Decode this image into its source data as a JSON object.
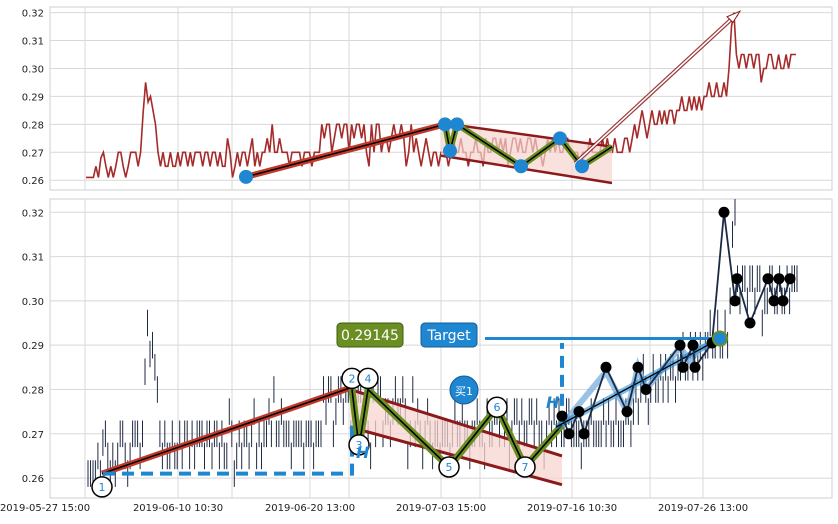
{
  "colors": {
    "price_top": "#a52a2a",
    "price_bars": "#1f2a44",
    "trend_red": "#c0392b",
    "trend_dark": "#8b1a1a",
    "channel_fill": "#f7d6d0",
    "zigzag_olive": "#6b8e23",
    "dots_blue": "#1f86d1",
    "dots_black": "#000000",
    "label_green": "#6b8e23",
    "label_blue": "#1f86d1",
    "dashed_blue": "#1f86d1",
    "grid": "#d8d8d8",
    "panel_bg": "#ffffff"
  },
  "chart_data": [
    {
      "type": "line",
      "panel": "top",
      "ylim": [
        0.2565,
        0.322
      ],
      "yticks": [
        "0.26",
        "0.27",
        "0.28",
        "0.29",
        "0.30",
        "0.31",
        "0.32"
      ],
      "series": [
        {
          "values": [
            0.261,
            0.261,
            0.261,
            0.261,
            0.265,
            0.261,
            0.268,
            0.27,
            0.265,
            0.261,
            0.265,
            0.261,
            0.265,
            0.27,
            0.27,
            0.265,
            0.261,
            0.265,
            0.27,
            0.27,
            0.27,
            0.265,
            0.27,
            0.284,
            0.295,
            0.288,
            0.29,
            0.285,
            0.28,
            0.27,
            0.265,
            0.27,
            0.265,
            0.265,
            0.27,
            0.265,
            0.265,
            0.27,
            0.265,
            0.27,
            0.27,
            0.265,
            0.27,
            0.265,
            0.27,
            0.27,
            0.27,
            0.265,
            0.27,
            0.27,
            0.265,
            0.27,
            0.27,
            0.265,
            0.27,
            0.265,
            0.265,
            0.275,
            0.27,
            0.261,
            0.265,
            0.27,
            0.265,
            0.27,
            0.27,
            0.265,
            0.27,
            0.275,
            0.265,
            0.27,
            0.265,
            0.27,
            0.27,
            0.275,
            0.27,
            0.28,
            0.27,
            0.27,
            0.275,
            0.27,
            0.27,
            0.27,
            0.265,
            0.27,
            0.27,
            0.27,
            0.27,
            0.265,
            0.27,
            0.27,
            0.27,
            0.265,
            0.27,
            0.27,
            0.27,
            0.28,
            0.275,
            0.28,
            0.28,
            0.27,
            0.275,
            0.28,
            0.28,
            0.275,
            0.28,
            0.28,
            0.27,
            0.28,
            0.275,
            0.28,
            0.28,
            0.275,
            0.28,
            0.27,
            0.265,
            0.28,
            0.27,
            0.28,
            0.28,
            0.27,
            0.275,
            0.275,
            0.27,
            0.275,
            0.28,
            0.275,
            0.275,
            0.28,
            0.275,
            0.265,
            0.27,
            0.28,
            0.27,
            0.275,
            0.27,
            0.265,
            0.27,
            0.275,
            0.27,
            0.265,
            0.27,
            0.27,
            0.265,
            0.27,
            0.27,
            0.27,
            0.265,
            0.27,
            0.275,
            0.27,
            0.27,
            0.275,
            0.27,
            0.27,
            0.265,
            0.27,
            0.27,
            0.275,
            0.27,
            0.27,
            0.265,
            0.275,
            0.27,
            0.27,
            0.275,
            0.275,
            0.27,
            0.275,
            0.27,
            0.275,
            0.265,
            0.27,
            0.275,
            0.275,
            0.27,
            0.275,
            0.27,
            0.27,
            0.275,
            0.275,
            0.27,
            0.275,
            0.27,
            0.27,
            0.265,
            0.27,
            0.275,
            0.27,
            0.275,
            0.27,
            0.275,
            0.27,
            0.27,
            0.275,
            0.275,
            0.27,
            0.27,
            0.27,
            0.27,
            0.265,
            0.27,
            0.27,
            0.27,
            0.275,
            0.27,
            0.27,
            0.27,
            0.27,
            0.275,
            0.27,
            0.275,
            0.27,
            0.27,
            0.275,
            0.27,
            0.27,
            0.27,
            0.275,
            0.275,
            0.27,
            0.275,
            0.28,
            0.275,
            0.28,
            0.285,
            0.28,
            0.275,
            0.28,
            0.285,
            0.28,
            0.28,
            0.285,
            0.28,
            0.285,
            0.28,
            0.285,
            0.285,
            0.28,
            0.285,
            0.285,
            0.29,
            0.285,
            0.285,
            0.29,
            0.285,
            0.29,
            0.285,
            0.29,
            0.285,
            0.29,
            0.29,
            0.295,
            0.29,
            0.29,
            0.295,
            0.29,
            0.29,
            0.295,
            0.29,
            0.3,
            0.315,
            0.32,
            0.305,
            0.3,
            0.305,
            0.305,
            0.3,
            0.305,
            0.305,
            0.3,
            0.305,
            0.305,
            0.295,
            0.3,
            0.3,
            0.305,
            0.305,
            0.3,
            0.3,
            0.305,
            0.3,
            0.3,
            0.305,
            0.3,
            0.305,
            0.305,
            0.305
          ]
        }
      ]
    },
    {
      "type": "bar",
      "panel": "bottom",
      "ylim": [
        0.2555,
        0.323
      ],
      "yticks": [
        "0.26",
        "0.27",
        "0.28",
        "0.29",
        "0.30",
        "0.31",
        "0.32"
      ],
      "categories": [
        "2019-05-27 15:00",
        "2019-06-10 10:30",
        "2019-06-20 13:00",
        "2019-07-03 15:00",
        "2019-07-16 10:30",
        "2019-07-26 13:00"
      ],
      "annotations": {
        "value_box": "0.29145",
        "target_box": "Target",
        "buy_marker": "买1",
        "point_numbers": [
          "1",
          "2",
          "3",
          "4",
          "5",
          "6",
          "7"
        ],
        "height_marker": "H"
      },
      "pivots": [
        {
          "label": "1",
          "value": 0.2605
        },
        {
          "label": "2",
          "value": 0.28
        },
        {
          "label": "3",
          "value": 0.267
        },
        {
          "label": "4",
          "value": 0.28
        },
        {
          "label": "5",
          "value": 0.2625
        },
        {
          "label": "6",
          "value": 0.276
        },
        {
          "label": "7",
          "value": 0.2625
        }
      ],
      "target_value": 0.29145
    }
  ]
}
